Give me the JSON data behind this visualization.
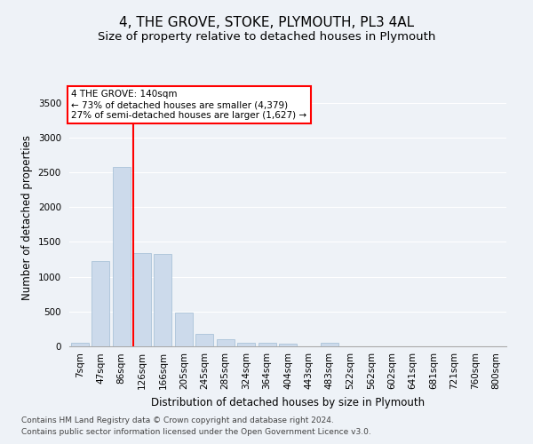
{
  "title": "4, THE GROVE, STOKE, PLYMOUTH, PL3 4AL",
  "subtitle": "Size of property relative to detached houses in Plymouth",
  "xlabel": "Distribution of detached houses by size in Plymouth",
  "ylabel": "Number of detached properties",
  "bar_color": "#ccdaeb",
  "bar_edge_color": "#a0bcd4",
  "categories": [
    "7sqm",
    "47sqm",
    "86sqm",
    "126sqm",
    "166sqm",
    "205sqm",
    "245sqm",
    "285sqm",
    "324sqm",
    "364sqm",
    "404sqm",
    "443sqm",
    "483sqm",
    "522sqm",
    "562sqm",
    "602sqm",
    "641sqm",
    "681sqm",
    "721sqm",
    "760sqm",
    "800sqm"
  ],
  "values": [
    55,
    1220,
    2580,
    1340,
    1330,
    490,
    185,
    100,
    50,
    45,
    35,
    5,
    50,
    5,
    5,
    5,
    5,
    5,
    5,
    5,
    5
  ],
  "ylim": [
    0,
    3700
  ],
  "yticks": [
    0,
    500,
    1000,
    1500,
    2000,
    2500,
    3000,
    3500
  ],
  "annotation_line1": "4 THE GROVE: 140sqm",
  "annotation_line2": "← 73% of detached houses are smaller (4,379)",
  "annotation_line3": "27% of semi-detached houses are larger (1,627) →",
  "vline_bin_index": 3,
  "footer1": "Contains HM Land Registry data © Crown copyright and database right 2024.",
  "footer2": "Contains public sector information licensed under the Open Government Licence v3.0.",
  "bg_color": "#eef2f7",
  "grid_color": "#ffffff",
  "title_fontsize": 11,
  "subtitle_fontsize": 9.5,
  "axis_label_fontsize": 8.5,
  "tick_fontsize": 7.5,
  "footer_fontsize": 6.5,
  "annot_fontsize": 7.5
}
